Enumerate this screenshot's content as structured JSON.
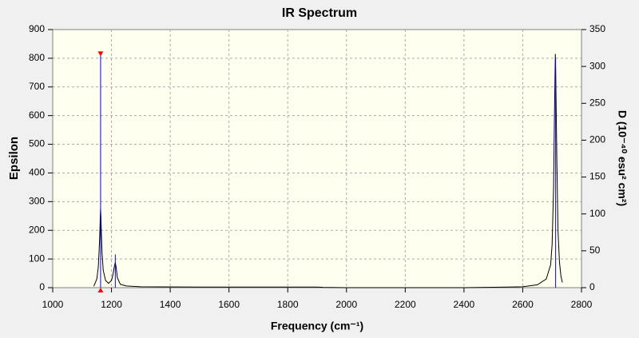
{
  "chart_data": {
    "type": "spectrum",
    "title": "IR Spectrum",
    "x_label": "Frequency (cm⁻¹)",
    "y_label": "Epsilon",
    "y2_label": "D (10⁻⁴⁰ esu² cm²)",
    "xlim": [
      1000,
      2800
    ],
    "xticks": [
      1000,
      1200,
      1400,
      1600,
      1800,
      2000,
      2200,
      2400,
      2600,
      2800
    ],
    "ylim": [
      0,
      900
    ],
    "yticks": [
      0,
      100,
      200,
      300,
      400,
      500,
      600,
      700,
      800,
      900
    ],
    "y2lim": [
      0,
      350
    ],
    "y2ticks": [
      0,
      50,
      100,
      150,
      200,
      250,
      300,
      350
    ],
    "grid": true,
    "series": [
      {
        "color": "#000000",
        "style": "line",
        "x": [
          1140,
          1150,
          1155,
          1158,
          1160,
          1162,
          1163,
          1164,
          1166,
          1168,
          1172,
          1180,
          1190,
          1200,
          1205,
          1210,
          1213,
          1216,
          1220,
          1230,
          1250,
          1300,
          1500,
          1900,
          1920,
          2000,
          2400,
          2600,
          2650,
          2680,
          2695,
          2700,
          2705,
          2708,
          2711,
          2713,
          2716,
          2720,
          2725,
          2730,
          2735
        ],
        "values": [
          5,
          30,
          70,
          130,
          180,
          250,
          275,
          250,
          180,
          120,
          60,
          25,
          15,
          25,
          45,
          75,
          88,
          70,
          35,
          12,
          6,
          3,
          2,
          2,
          1,
          0,
          0,
          3,
          10,
          30,
          80,
          150,
          350,
          600,
          815,
          700,
          450,
          200,
          90,
          40,
          18
        ]
      },
      {
        "color": "#0000ff",
        "style": "stick",
        "axis": "y2",
        "x": [
          1163,
          1213,
          2712
        ],
        "values": [
          316,
          45,
          310
        ]
      }
    ]
  }
}
